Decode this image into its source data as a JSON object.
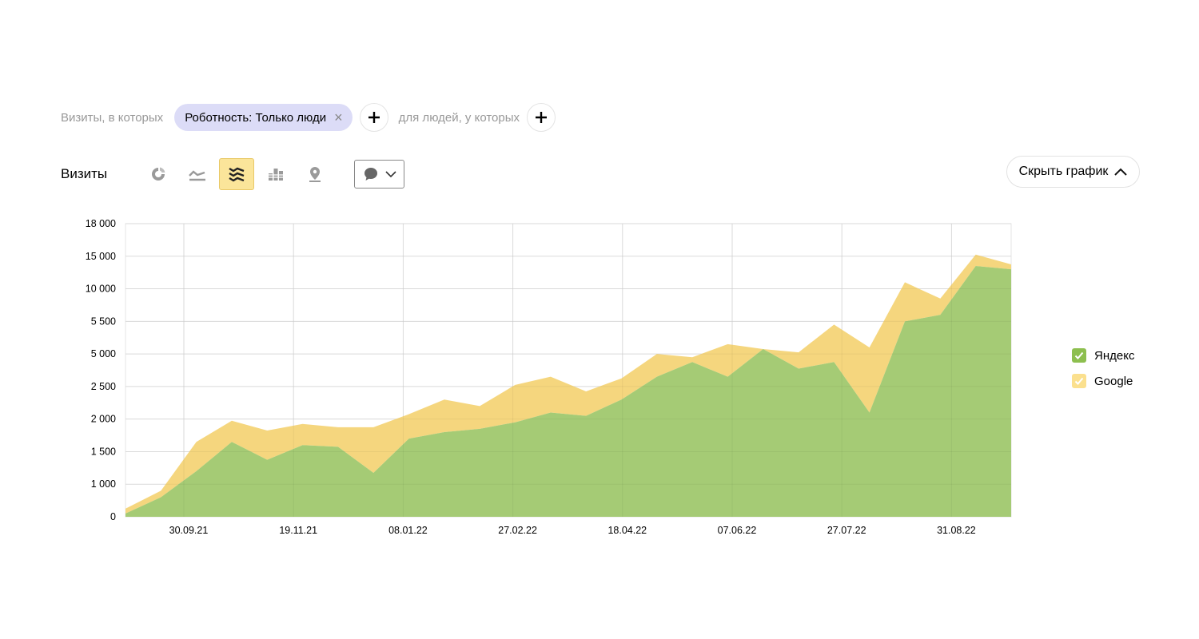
{
  "filters": {
    "prefix": "Визиты, в которых",
    "chip_label": "Роботность: Только люди",
    "chip_close": "×",
    "people_label": "для людей, у которых"
  },
  "toolbar": {
    "title": "Визиты",
    "icons": [
      "donut-chart-icon",
      "line-chart-icon",
      "stacked-area-icon",
      "bar-chart-icon",
      "map-pin-icon"
    ],
    "active_icon": "stacked-area-icon",
    "annotation_select_icon": "comment-icon"
  },
  "hide_chart_label": "Скрыть график",
  "colors": {
    "yandex": "#a5cb75",
    "google": "#f5d67e",
    "chip_bg": "#dcdcf7",
    "active_btn": "#fbe59a",
    "legend_yandex": "#8dbf4f",
    "legend_google": "#fbe08e"
  },
  "chart_data": {
    "type": "area",
    "stacked": true,
    "y_tick_labels": [
      "0",
      "1 000",
      "1 500",
      "2 000",
      "2 500",
      "5 000",
      "5 500",
      "10 000",
      "15 000",
      "18 000"
    ],
    "x_tick_labels": [
      "30.09.21",
      "19.11.21",
      "08.01.22",
      "27.02.22",
      "18.04.22",
      "07.06.22",
      "27.07.22",
      "31.08.22"
    ],
    "grid": true,
    "legend_position": "right",
    "series": [
      {
        "name": "Яндекс",
        "values": [
          0.1,
          0.6,
          1.4,
          2.3,
          1.75,
          2.2,
          2.15,
          1.35,
          2.4,
          2.6,
          2.7,
          2.9,
          3.2,
          3.1,
          3.6,
          4.3,
          4.75,
          4.3,
          5.15,
          4.55,
          4.75,
          3.2,
          6.0,
          6.2,
          7.7,
          7.6
        ]
      },
      {
        "name": "Google",
        "values": [
          0.15,
          0.2,
          0.9,
          0.65,
          0.9,
          0.65,
          0.6,
          1.4,
          0.75,
          1.0,
          0.7,
          1.15,
          1.1,
          0.75,
          0.65,
          0.7,
          0.15,
          1.0,
          0.0,
          0.5,
          1.15,
          2.0,
          1.2,
          0.5,
          0.35,
          0.15
        ]
      }
    ]
  },
  "legend": [
    {
      "label": "Яндекс"
    },
    {
      "label": "Google"
    }
  ]
}
